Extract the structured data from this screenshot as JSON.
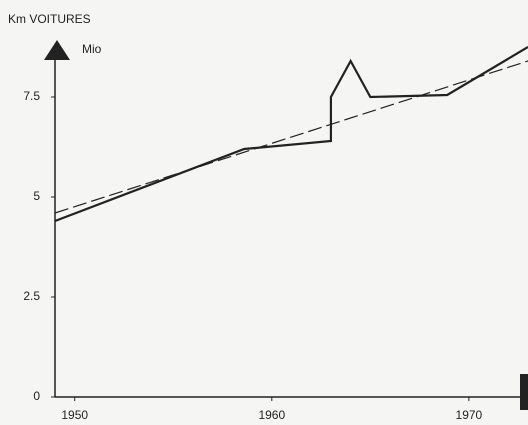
{
  "chart_data": {
    "type": "line",
    "y_label": "Km VOITURES",
    "y_unit": "Mio",
    "series": [
      {
        "color": "#222222",
        "dash": false,
        "x": [
          1949,
          1958.6,
          1963,
          1963,
          1964,
          1965,
          1968.9,
          1973
        ],
        "values": [
          4.4,
          6.2,
          6.4,
          7.5,
          8.4,
          7.5,
          7.55,
          8.75
        ]
      },
      {
        "color": "#222222",
        "dash": true,
        "x": [
          1949,
          1973
        ],
        "values": [
          4.6,
          8.4
        ]
      }
    ],
    "xlim": [
      1949,
      1973
    ],
    "ylim": [
      0,
      8.5
    ],
    "xticks": [
      1950,
      1960,
      1970
    ],
    "yticks": [
      0,
      2.5,
      5,
      7.5
    ]
  }
}
